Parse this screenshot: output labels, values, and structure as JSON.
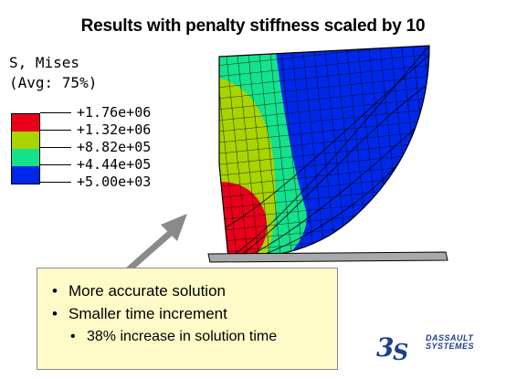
{
  "title": "Results with penalty stiffness scaled by 10",
  "legend": {
    "variable": "S, Mises",
    "averaging": "(Avg: 75%)",
    "levels": [
      "+1.76e+06",
      "+1.32e+06",
      "+8.82e+05",
      "+4.44e+05",
      "+5.00e+03"
    ],
    "colors": [
      "#e8001a",
      "#a8d400",
      "#14e28c",
      "#0028e8"
    ]
  },
  "callout": {
    "bullets": [
      "More accurate solution",
      "Smaller time increment"
    ],
    "sub_bullets": [
      "38% increase in solution time"
    ]
  },
  "logo": {
    "line1": "DASSAULT",
    "line2": "SYSTEMES"
  }
}
